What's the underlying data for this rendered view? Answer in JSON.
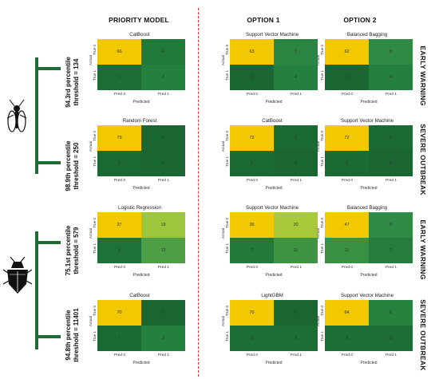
{
  "columns": {
    "priority": "PRIORITY MODEL",
    "option1": "OPTION 1",
    "option2": "OPTION 2"
  },
  "row_labels": [
    "EARLY WARNING",
    "SEVERE OUTBREAK",
    "EARLY WARNING",
    "SEVERE OUTBREAK"
  ],
  "thresholds": [
    {
      "pct": "94.3rd percentile",
      "thr": "threshold = 134"
    },
    {
      "pct": "98.9th percentile",
      "thr": "threshold = 250"
    },
    {
      "pct": "75.1st percentile",
      "thr": "threshold = 579"
    },
    {
      "pct": "94.8th percentile",
      "thr": "threshold = 11401"
    }
  ],
  "axis": {
    "xlabel": "Predicted",
    "ylabel": "Actual",
    "xticks": [
      "Pred 0",
      "Pred 1"
    ],
    "yticks": [
      "True 0",
      "True 1"
    ]
  },
  "matrices": [
    {
      "id": "r0c0",
      "title": "CatBoost",
      "v": [
        "66",
        "4",
        "1",
        "3"
      ],
      "c": [
        "#f2c800",
        "#1f7a3a",
        "#1d6e35",
        "#24803f"
      ]
    },
    {
      "id": "r0c1",
      "title": "Support Vector Machine",
      "v": [
        "63",
        "7",
        "0",
        "4"
      ],
      "c": [
        "#f2c800",
        "#2a8542",
        "#1a6630",
        "#24803f"
      ]
    },
    {
      "id": "r0c2",
      "title": "Balanced Bagging",
      "v": [
        "62",
        "8",
        "0",
        "4"
      ],
      "c": [
        "#f2c800",
        "#2e8a45",
        "#1a6630",
        "#24803f"
      ]
    },
    {
      "id": "r1c0",
      "title": "Random Forest",
      "v": [
        "73",
        "0",
        "1",
        "0"
      ],
      "c": [
        "#f2c800",
        "#1a6630",
        "#1b6a32",
        "#1a6630"
      ]
    },
    {
      "id": "r1c1",
      "title": "CatBoost",
      "v": [
        "72",
        "1",
        "1",
        "0"
      ],
      "c": [
        "#f2c800",
        "#1b6a32",
        "#1b6a32",
        "#1a6630"
      ]
    },
    {
      "id": "r1c2",
      "title": "Support Vector Machine",
      "v": [
        "72",
        "1",
        "1",
        "0"
      ],
      "c": [
        "#f2c800",
        "#1b6a32",
        "#1b6a32",
        "#1a6630"
      ]
    },
    {
      "id": "r2c0",
      "title": "Logistic Regression",
      "v": [
        "37",
        "19",
        "5",
        "13"
      ],
      "c": [
        "#f2c800",
        "#9cc63c",
        "#1f7237",
        "#4e9e46"
      ]
    },
    {
      "id": "r2c1",
      "title": "Support Vector Machine",
      "v": [
        "36",
        "20",
        "7",
        "11"
      ],
      "c": [
        "#f2c800",
        "#a8c93a",
        "#23783b",
        "#3f9442"
      ]
    },
    {
      "id": "r2c2",
      "title": "Balanced Bagging",
      "v": [
        "47",
        "9",
        "11",
        "7"
      ],
      "c": [
        "#f2c800",
        "#2f8a45",
        "#3a9042",
        "#257c3d"
      ]
    },
    {
      "id": "r3c0",
      "title": "CatBoost",
      "v": [
        "70",
        "0",
        "1",
        "3"
      ],
      "c": [
        "#f2c800",
        "#1a6630",
        "#1b6a32",
        "#24803f"
      ]
    },
    {
      "id": "r3c1",
      "title": "LightGBM",
      "v": [
        "70",
        "0",
        "2",
        "2"
      ],
      "c": [
        "#f2c800",
        "#1a6630",
        "#1d6e35",
        "#1d6e35"
      ]
    },
    {
      "id": "r3c2",
      "title": "Support Vector Machine",
      "v": [
        "64",
        "6",
        "2",
        "2"
      ],
      "c": [
        "#f2c800",
        "#28823f",
        "#1d6e35",
        "#1d6e35"
      ]
    }
  ]
}
